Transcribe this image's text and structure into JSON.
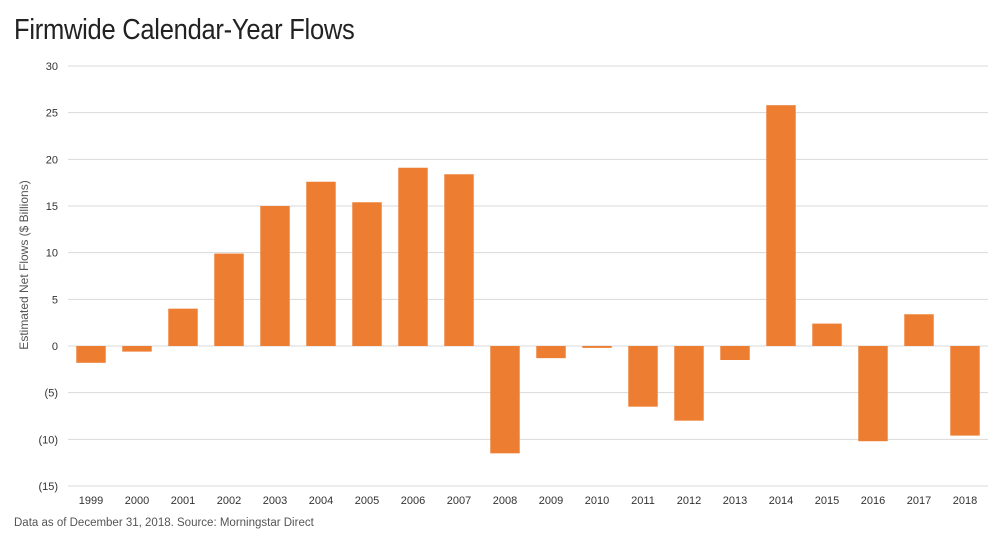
{
  "chart_data": {
    "type": "bar",
    "title": "Firmwide Calendar-Year Flows",
    "ylabel": "Estimated Net Flows ($ Billions)",
    "xlabel": "",
    "ylim": [
      -15,
      30
    ],
    "yticks": [
      30,
      25,
      20,
      15,
      10,
      5,
      0,
      -5,
      -10,
      -15
    ],
    "ytick_labels": [
      "30",
      "25",
      "20",
      "15",
      "10",
      "5",
      "0",
      "(5)",
      "(10)",
      "(15)"
    ],
    "categories": [
      "1999",
      "2000",
      "2001",
      "2002",
      "2003",
      "2004",
      "2005",
      "2006",
      "2007",
      "2008",
      "2009",
      "2010",
      "2011",
      "2012",
      "2013",
      "2014",
      "2015",
      "2016",
      "2017",
      "2018"
    ],
    "values": [
      -1.8,
      -0.6,
      4.0,
      9.9,
      15.0,
      17.6,
      15.4,
      19.1,
      18.4,
      -11.5,
      -1.3,
      -0.2,
      -6.5,
      -8.0,
      -1.5,
      25.8,
      2.4,
      -10.2,
      3.4,
      -9.6
    ],
    "bar_color": "#ED7D31",
    "grid": true,
    "legend": "none"
  },
  "footnote": "Data as of December 31, 2018.  Source: Morningstar Direct"
}
